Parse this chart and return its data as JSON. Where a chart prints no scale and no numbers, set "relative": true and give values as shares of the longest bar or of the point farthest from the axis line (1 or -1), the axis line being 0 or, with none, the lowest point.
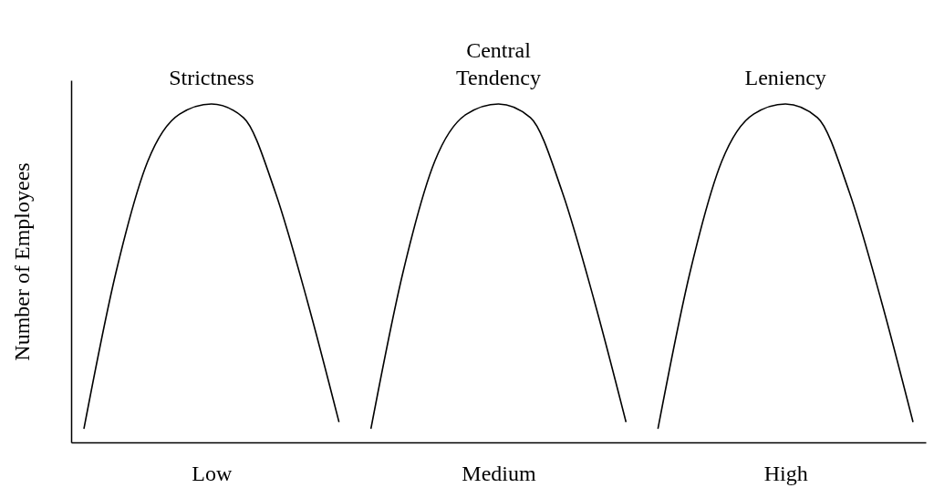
{
  "chart_data": {
    "type": "line",
    "relative": true,
    "ylabel": "Number of Employees",
    "categories": [
      null,
      null,
      null,
      null,
      "Low",
      null,
      null,
      null,
      null,
      null,
      null,
      null,
      null,
      "Medium",
      null,
      null,
      null,
      null,
      null,
      null,
      null,
      null,
      "High",
      null,
      null,
      null,
      null
    ],
    "grid": false,
    "legend": false,
    "marker": "none",
    "line_style": "solid",
    "series": [
      {
        "name": "Strictness",
        "color": "#000000",
        "values": [
          0.04,
          0.5,
          0.83,
          0.97,
          1,
          0.96,
          0.74,
          0.42,
          0.06,
          null,
          null,
          null,
          null,
          null,
          null,
          null,
          null,
          null,
          null,
          null,
          null,
          null,
          null,
          null,
          null,
          null,
          null
        ]
      },
      {
        "name": "Central Tendency",
        "color": "#000000",
        "values": [
          null,
          null,
          null,
          null,
          null,
          null,
          null,
          null,
          null,
          0.04,
          0.5,
          0.83,
          0.97,
          1,
          0.96,
          0.74,
          0.42,
          0.06,
          null,
          null,
          null,
          null,
          null,
          null,
          null,
          null,
          null
        ]
      },
      {
        "name": "Leniency",
        "color": "#000000",
        "values": [
          null,
          null,
          null,
          null,
          null,
          null,
          null,
          null,
          null,
          null,
          null,
          null,
          null,
          null,
          null,
          null,
          null,
          null,
          0.04,
          0.5,
          0.83,
          0.97,
          1,
          0.96,
          0.74,
          0.42,
          0.06
        ]
      }
    ]
  }
}
